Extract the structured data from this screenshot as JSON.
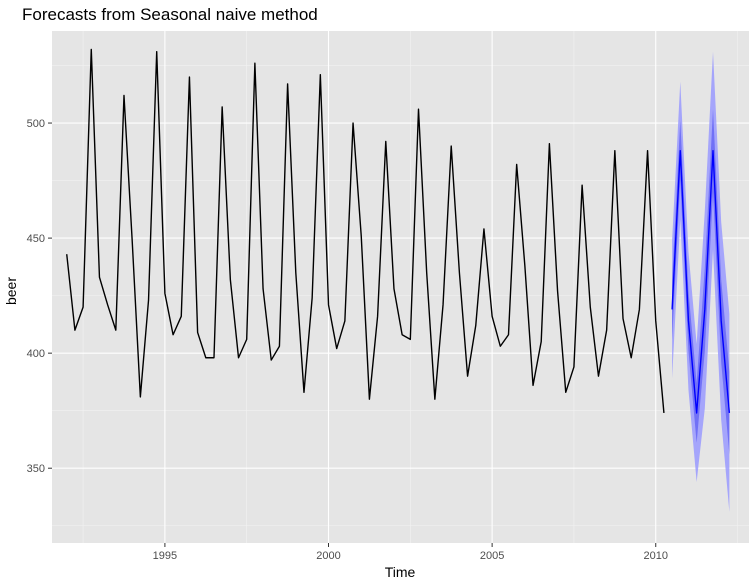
{
  "chart_data": {
    "type": "line",
    "title": "Forecasts from Seasonal naive method",
    "xlabel": "Time",
    "ylabel": "beer",
    "xlim": [
      1991.55,
      2012.85
    ],
    "ylim": [
      317.5,
      540
    ],
    "x_ticks": [
      1995,
      2000,
      2005,
      2010
    ],
    "x_tick_labels": [
      "1995",
      "2000",
      "2005",
      "2010"
    ],
    "y_ticks": [
      350,
      400,
      450,
      500
    ],
    "y_tick_labels": [
      "350",
      "400",
      "450",
      "500"
    ],
    "grid": true,
    "legend": "none",
    "colors": {
      "panel_background": "#e5e5e5",
      "grid_major": "#ffffff",
      "grid_minor": "#f2f2f2",
      "actual_line": "#000000",
      "forecast_line": "#0000ff",
      "interval_95": "#9a9aff",
      "interval_80": "#6b6bf5"
    },
    "series": [
      {
        "name": "",
        "role": "actual",
        "start": 1992.0,
        "step": 0.25,
        "values": [
          443,
          410,
          420,
          532,
          433,
          421,
          410,
          512,
          449,
          381,
          423,
          531,
          426,
          408,
          416,
          520,
          409,
          398,
          398,
          507,
          432,
          398,
          406,
          526,
          428,
          397,
          403,
          517,
          435,
          383,
          424,
          521,
          421,
          402,
          414,
          500,
          451,
          380,
          416,
          492,
          428,
          408,
          406,
          506,
          435,
          380,
          421,
          490,
          435,
          390,
          412,
          454,
          416,
          403,
          408,
          482,
          438,
          386,
          405,
          491,
          427,
          383,
          394,
          473,
          420,
          390,
          410,
          488,
          415,
          398,
          419,
          488,
          414,
          374
        ]
      },
      {
        "name": "",
        "role": "forecast",
        "start": 2010.5,
        "step": 0.25,
        "values": [
          419,
          488,
          414,
          374,
          419,
          488,
          414,
          374
        ],
        "lo80": [
          406,
          475,
          401,
          361,
          401,
          470,
          396,
          356
        ],
        "hi80": [
          432,
          501,
          427,
          387,
          437,
          506,
          432,
          392
        ],
        "lo95": [
          389,
          458,
          384,
          344,
          376,
          445,
          371,
          331
        ],
        "hi95": [
          449,
          518,
          444,
          404,
          462,
          531,
          457,
          417
        ]
      }
    ]
  }
}
